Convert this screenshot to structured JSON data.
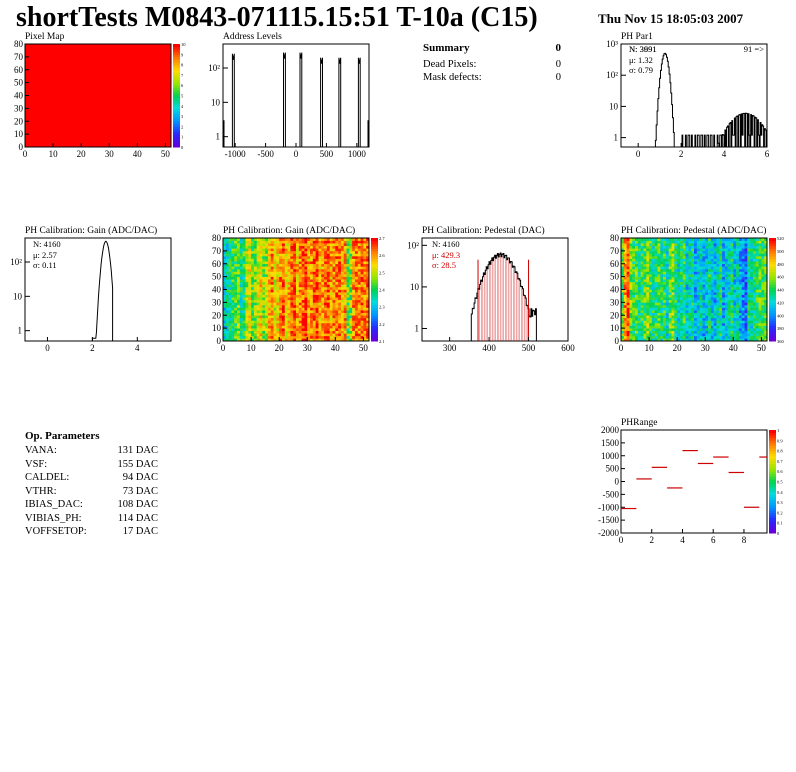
{
  "header": {
    "title": "shortTests M0843-071115.15:51 T-10a (C15)",
    "date": "Thu Nov 15 18:05:03 2007"
  },
  "summary": {
    "title": "Summary",
    "title_value": "0",
    "rows": [
      {
        "label": "Dead Pixels:",
        "value": "0"
      },
      {
        "label": "Mask defects:",
        "value": "0"
      }
    ]
  },
  "op_params": {
    "title": "Op. Parameters",
    "rows": [
      {
        "label": "VANA:",
        "value": "131 DAC"
      },
      {
        "label": "VSF:",
        "value": "155 DAC"
      },
      {
        "label": "CALDEL:",
        "value": "94 DAC"
      },
      {
        "label": "VTHR:",
        "value": "73 DAC"
      },
      {
        "label": "IBIAS_DAC:",
        "value": "108 DAC"
      },
      {
        "label": "VIBIAS_PH:",
        "value": "114 DAC"
      },
      {
        "label": "VOFFSETOP:",
        "value": "17 DAC"
      }
    ]
  },
  "chart_data": [
    {
      "id": "pixel-map",
      "type": "heatmap",
      "title": "Pixel Map",
      "xlim": [
        0,
        52
      ],
      "ylim": [
        0,
        80
      ],
      "xticks": [
        "0",
        "10",
        "20",
        "30",
        "40",
        "50"
      ],
      "yticks": [
        "0",
        "10",
        "20",
        "30",
        "40",
        "50",
        "60",
        "70",
        "80"
      ],
      "zlim": [
        0,
        10
      ],
      "zticks": [
        "0",
        "1",
        "2",
        "3",
        "4",
        "5",
        "6",
        "7",
        "8",
        "9",
        "10"
      ],
      "uniform_value": 10,
      "color": "#ff0000"
    },
    {
      "id": "address-levels",
      "type": "line",
      "title": "Address Levels",
      "xlim": [
        -1200,
        1200
      ],
      "ylog": true,
      "ylim": [
        0.5,
        500
      ],
      "xticks": [
        "-1000",
        "-500",
        "0",
        "500",
        "1000"
      ],
      "yticks": [
        "1",
        "10",
        "10²"
      ],
      "peaks": [
        {
          "x": -1030,
          "width": 30,
          "height": 260
        },
        {
          "x": -190,
          "width": 30,
          "height": 280
        },
        {
          "x": 80,
          "width": 30,
          "height": 280
        },
        {
          "x": 420,
          "width": 30,
          "height": 200
        },
        {
          "x": 720,
          "width": 30,
          "height": 200
        },
        {
          "x": 1040,
          "width": 30,
          "height": 200
        }
      ],
      "edge_value": 3
    },
    {
      "id": "ph-par1",
      "type": "bar",
      "title": "PH Par1",
      "xlim": [
        -0.8,
        6
      ],
      "ylog": true,
      "ylim": [
        0.5,
        1000
      ],
      "xticks": [
        "0",
        "2",
        "4",
        "6"
      ],
      "yticks": [
        "1",
        "10",
        "10²",
        "10³"
      ],
      "stats": {
        "n": "N: 3991",
        "n_overlay": "N: 3691",
        "mu": "μ: 1.32",
        "sigma": "σ: 0.79"
      },
      "overflow_label": "91 =>",
      "main_peak": {
        "center": 1.25,
        "sigma": 0.12,
        "peak": 500
      },
      "tail": {
        "from": 2.0,
        "to": 6.0,
        "center": 5.0,
        "sigma": 0.6,
        "peak": 6
      }
    },
    {
      "id": "ph-gain-hist",
      "type": "bar",
      "title": "PH Calibration: Gain (ADC/DAC)",
      "xlim": [
        -1,
        5.5
      ],
      "ylog": true,
      "ylim": [
        0.5,
        500
      ],
      "xticks": [
        "0",
        "2",
        "4"
      ],
      "yticks": [
        "1",
        "10",
        "10²"
      ],
      "stats": {
        "n": "N: 4160",
        "mu": "μ: 2.57",
        "sigma": "σ: 0.11"
      },
      "peak": {
        "center": 2.6,
        "sigma": 0.12,
        "peak": 400,
        "from": 2.0,
        "to": 2.9
      }
    },
    {
      "id": "ph-gain-map",
      "type": "heatmap",
      "title": "PH Calibration: Gain (ADC/DAC)",
      "xlim": [
        0,
        52
      ],
      "ylim": [
        0,
        80
      ],
      "xticks": [
        "0",
        "10",
        "20",
        "30",
        "40",
        "50"
      ],
      "yticks": [
        "0",
        "10",
        "20",
        "30",
        "40",
        "50",
        "60",
        "70",
        "80"
      ],
      "zlim": [
        2.05,
        2.75
      ],
      "zticks": [
        "2.1",
        "2.2",
        "2.3",
        "2.4",
        "2.5",
        "2.6",
        "2.7"
      ],
      "column_profile": [
        0.35,
        0.4,
        0.45,
        0.5,
        0.55,
        0.6,
        0.45,
        0.5,
        0.65,
        0.7,
        0.55,
        0.6,
        0.7,
        0.75,
        0.6,
        0.65,
        0.8,
        0.85,
        0.7,
        0.75,
        0.85,
        0.9,
        0.75,
        0.8,
        0.9,
        0.95,
        0.8,
        0.85,
        0.9,
        0.95,
        0.8,
        0.85,
        0.9,
        0.92,
        0.8,
        0.85,
        0.9,
        0.92,
        0.8,
        0.85,
        0.88,
        0.9,
        0.8,
        0.85,
        0.55,
        0.6,
        0.85,
        0.9,
        0.85,
        0.9,
        0.85,
        0.9
      ]
    },
    {
      "id": "ph-pedestal-hist",
      "type": "bar",
      "title": "PH Calibration: Pedestal (DAC)",
      "xlim": [
        230,
        600
      ],
      "ylog": true,
      "ylim": [
        0.5,
        150
      ],
      "xticks": [
        "300",
        "400",
        "500",
        "600"
      ],
      "yticks": [
        "1",
        "10",
        "10²"
      ],
      "stats": {
        "n": "N: 4160",
        "mu": "μ: 429.3",
        "sigma": "σ: 28.5"
      },
      "dist": {
        "center": 429.3,
        "sigma": 28.5,
        "peak": 60,
        "from": 355,
        "to": 520
      },
      "fit_lines": [
        372,
        500
      ],
      "fit_color": "#cc0000"
    },
    {
      "id": "ph-pedestal-map",
      "type": "heatmap",
      "title": "PH Calibration: Pedestal (ADC/DAC)",
      "xlim": [
        0,
        52
      ],
      "ylim": [
        0,
        80
      ],
      "xticks": [
        "0",
        "10",
        "20",
        "30",
        "40",
        "50"
      ],
      "yticks": [
        "0",
        "10",
        "20",
        "30",
        "40",
        "50",
        "60",
        "70",
        "80"
      ],
      "zlim": [
        350,
        520
      ],
      "zticks": [
        "360",
        "380",
        "400",
        "420",
        "440",
        "460",
        "480",
        "500",
        "520"
      ],
      "column_profile": [
        0.55,
        0.85,
        0.95,
        0.6,
        0.5,
        0.55,
        0.45,
        0.5,
        0.55,
        0.6,
        0.5,
        0.45,
        0.5,
        0.55,
        0.45,
        0.5,
        0.4,
        0.55,
        0.6,
        0.45,
        0.4,
        0.45,
        0.5,
        0.35,
        0.4,
        0.45,
        0.3,
        0.35,
        0.4,
        0.3,
        0.35,
        0.45,
        0.35,
        0.3,
        0.4,
        0.45,
        0.3,
        0.35,
        0.4,
        0.45,
        0.35,
        0.4,
        0.3,
        0.25,
        0.2,
        0.45,
        0.4,
        0.45,
        0.5,
        0.55,
        0.5,
        0.55
      ]
    },
    {
      "id": "ph-range",
      "type": "scatter",
      "title": "PHRange",
      "xlim": [
        0,
        9.5
      ],
      "ylim": [
        -2000,
        2000
      ],
      "xticks": [
        "0",
        "2",
        "4",
        "6",
        "8"
      ],
      "yticks": [
        "2000",
        "1500",
        "1000",
        "500",
        "0",
        "-500",
        "-1000",
        "-1500",
        "-2000"
      ],
      "zticks": [
        "0",
        "0.1",
        "0.2",
        "0.3",
        "0.4",
        "0.5",
        "0.6",
        "0.7",
        "0.8",
        "0.9",
        "1"
      ],
      "points": [
        {
          "x": 0.5,
          "y": -1050
        },
        {
          "x": 1.5,
          "y": 100
        },
        {
          "x": 2.5,
          "y": 550
        },
        {
          "x": 3.5,
          "y": -250
        },
        {
          "x": 4.5,
          "y": 1200
        },
        {
          "x": 5.5,
          "y": 700
        },
        {
          "x": 6.5,
          "y": 950
        },
        {
          "x": 7.5,
          "y": 350
        },
        {
          "x": 8.5,
          "y": -1000
        },
        {
          "x": 9.5,
          "y": 950
        }
      ],
      "color": "#cc0000"
    }
  ]
}
